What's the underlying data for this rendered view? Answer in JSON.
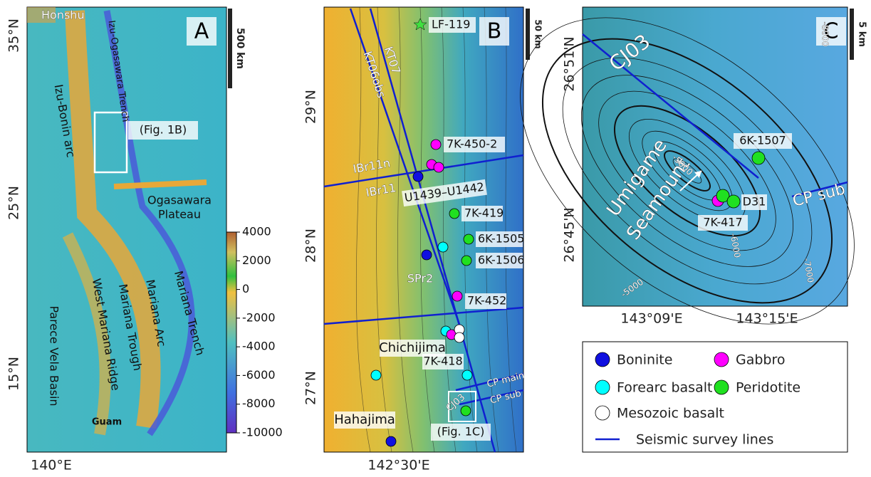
{
  "panel_a": {
    "letter": "A",
    "lat_labels": [
      "35°N",
      "25°N",
      "15°N"
    ],
    "lon_label": "140°E",
    "scale": "500 km",
    "labels": [
      "Honshu",
      "Izu-Bonin arc",
      "Izu-Ogasawara Trench",
      "(Fig. 1B)",
      "Ogasawara",
      "Plateau",
      "Mariana Arc",
      "Mariana Trough",
      "West Mariana Ridge",
      "Mariana Trench",
      "Parece Vela Basin",
      "Guam"
    ],
    "colorbar_ticks": [
      4000,
      2000,
      0,
      -2000,
      -4000,
      -6000,
      -8000,
      -10000
    ]
  },
  "panel_b": {
    "letter": "B",
    "lat_labels": [
      "29°N",
      "28°N",
      "27°N"
    ],
    "lon_label": "142°30'E",
    "scale": "50 km",
    "labels": [
      "LF-119",
      "KT07",
      "KT06obs",
      "7K-450-2",
      "IBr11n",
      "IBr11",
      "U1439–U1442",
      "7K-419",
      "6K-1505",
      "6K-1506",
      "SPr2",
      "7K-452",
      "Chichijima",
      "7K-418",
      "CP main",
      "CP sub",
      "CJ03",
      "Hahajima",
      "(Fig. 1C)"
    ]
  },
  "panel_c": {
    "letter": "C",
    "lat_labels": [
      "26°51'N",
      "26°45'N"
    ],
    "lon_labels": [
      "143°09'E",
      "143°15'E"
    ],
    "scale": "5 km",
    "labels": [
      "CJ03",
      "Umigame",
      "Seamount",
      "6K-1507",
      "D31",
      "7K-417",
      "CP sub"
    ],
    "contour_labels": [
      "-5000",
      "-6000",
      "-7000",
      "-8000",
      "-5000"
    ]
  },
  "legend": [
    "Boninite",
    "Gabbro",
    "Forearc basalt",
    "Peridotite",
    "Mesozoic basalt",
    "Seismic survey lines"
  ]
}
